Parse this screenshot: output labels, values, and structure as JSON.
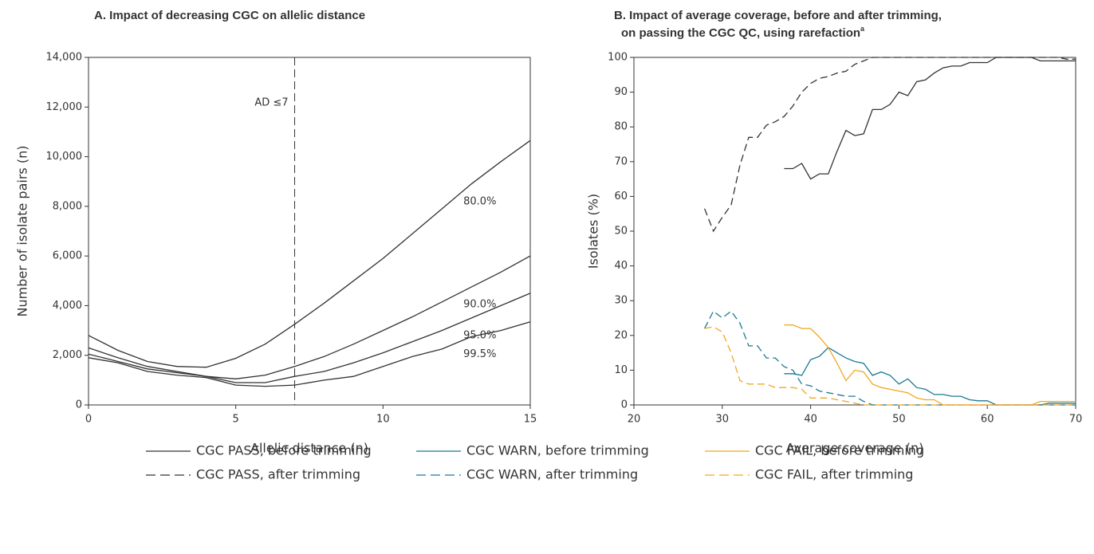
{
  "chart_data": [
    {
      "type": "line",
      "title": [
        "A. Impact of decreasing CGC on allelic distance"
      ],
      "x_label": "Allelic distance (n)",
      "y_label": "Number of isolate pairs (n)",
      "xlim": [
        0,
        15
      ],
      "xticks": [
        0,
        5,
        10,
        15
      ],
      "ylim": [
        0,
        14000
      ],
      "yticks": [
        0,
        {
          "value": 2000,
          "label": "2,000"
        },
        {
          "value": 4000,
          "label": "4,000"
        },
        {
          "value": 6000,
          "label": "6,000"
        },
        {
          "value": 8000,
          "label": "8,000"
        },
        {
          "value": 10000,
          "label": "10,000"
        },
        {
          "value": 12000,
          "label": "12,000"
        },
        {
          "value": 14000,
          "label": "14,000"
        }
      ],
      "inline_labels": true,
      "reference_line": {
        "x": 7,
        "label": "AD ≤7",
        "dash": true
      },
      "series": [
        {
          "name": "80.0%",
          "color": "#333333",
          "x": [
            0,
            1,
            2,
            3,
            4,
            5,
            6,
            7,
            8,
            9,
            10,
            11,
            12,
            13,
            14,
            15
          ],
          "values": [
            2800,
            2200,
            1750,
            1550,
            1520,
            1880,
            2450,
            3250,
            4100,
            5000,
            5900,
            6900,
            7900,
            8900,
            9800,
            10650
          ]
        },
        {
          "name": "90.0%",
          "color": "#333333",
          "x": [
            0,
            1,
            2,
            3,
            4,
            5,
            6,
            7,
            8,
            9,
            10,
            11,
            12,
            13,
            14,
            15
          ],
          "values": [
            2300,
            1900,
            1550,
            1350,
            1150,
            1050,
            1200,
            1550,
            1950,
            2450,
            3000,
            3550,
            4150,
            4750,
            5350,
            6000
          ]
        },
        {
          "name": "95.0%",
          "color": "#333333",
          "x": [
            0,
            1,
            2,
            3,
            4,
            5,
            6,
            7,
            8,
            9,
            10,
            11,
            12,
            13,
            14,
            15
          ],
          "values": [
            2050,
            1750,
            1450,
            1300,
            1150,
            900,
            900,
            1150,
            1350,
            1700,
            2100,
            2550,
            3000,
            3500,
            4000,
            4500
          ]
        },
        {
          "name": "99.5%",
          "color": "#333333",
          "x": [
            0,
            1,
            2,
            3,
            4,
            5,
            6,
            7,
            8,
            9,
            10,
            11,
            12,
            13,
            14,
            15
          ],
          "values": [
            1900,
            1700,
            1350,
            1200,
            1100,
            800,
            750,
            800,
            1000,
            1150,
            1550,
            1950,
            2250,
            2750,
            3000,
            3350
          ]
        }
      ]
    },
    {
      "type": "line",
      "title": [
        "B. Impact of average coverage, before and after trimming,",
        "on passing the CGC QC, using rarefaction"
      ],
      "title_note": "a",
      "x_label": "Average coverage (n)",
      "y_label": "Isolates (%)",
      "xlim": [
        20,
        70
      ],
      "xticks": [
        20,
        30,
        40,
        50,
        60,
        70
      ],
      "ylim": [
        0,
        100
      ],
      "yticks": [
        0,
        10,
        20,
        30,
        40,
        50,
        60,
        70,
        80,
        90,
        100
      ],
      "legend": "bottom",
      "series": [
        {
          "name": "CGC PASS, before trimming",
          "color": "#333333",
          "dash": false,
          "x": [
            37,
            38,
            39,
            40,
            41,
            42,
            43,
            44,
            45,
            46,
            47,
            48,
            49,
            50,
            51,
            52,
            53,
            54,
            55,
            56,
            57,
            58,
            59,
            60,
            61,
            62,
            63,
            64,
            65,
            66,
            67,
            68,
            69,
            70
          ],
          "values": [
            68,
            68,
            69.5,
            65,
            66.5,
            66.5,
            73,
            79,
            77.5,
            78,
            85,
            85,
            86.5,
            90,
            89,
            93,
            93.5,
            95.5,
            97,
            97.5,
            97.5,
            98.5,
            98.5,
            98.5,
            100,
            100,
            100,
            100,
            100,
            99,
            99,
            99,
            99,
            99
          ]
        },
        {
          "name": "CGC PASS, after trimming",
          "color": "#333333",
          "dash": true,
          "x": [
            28,
            29,
            30,
            31,
            32,
            33,
            34,
            35,
            36,
            37,
            38,
            39,
            40,
            41,
            42,
            43,
            44,
            45,
            46,
            47,
            48,
            49,
            50,
            51,
            52,
            53,
            54,
            55,
            56,
            57,
            58,
            59,
            60,
            61,
            62,
            63,
            64,
            65,
            66,
            67,
            68,
            69,
            70
          ],
          "values": [
            56.5,
            50,
            54,
            57.5,
            69,
            77,
            77,
            80.5,
            81.5,
            83,
            86,
            90,
            92.5,
            94,
            94.5,
            95.5,
            96,
            98,
            99,
            100,
            100,
            100,
            100,
            100,
            100,
            100,
            100,
            100,
            100,
            100,
            100,
            100,
            100,
            100,
            100,
            100,
            100,
            100,
            100,
            100,
            100,
            99.5,
            99.5
          ]
        },
        {
          "name": "CGC WARN, before trimming",
          "color": "#1b7896",
          "dash": false,
          "x": [
            37,
            38,
            39,
            40,
            41,
            42,
            43,
            44,
            45,
            46,
            47,
            48,
            49,
            50,
            51,
            52,
            53,
            54,
            55,
            56,
            57,
            58,
            59,
            60,
            61,
            62,
            63,
            64,
            65,
            66,
            67,
            68,
            69,
            70
          ],
          "values": [
            9,
            9,
            8.5,
            13,
            14,
            16.5,
            15,
            13.5,
            12.5,
            12,
            8.5,
            9.5,
            8.5,
            6,
            7.5,
            5,
            4.5,
            3,
            3,
            2.5,
            2.5,
            1.5,
            1.2,
            1.2,
            0,
            0,
            0,
            0,
            0,
            0,
            0.5,
            0.5,
            0.5,
            0.5
          ]
        },
        {
          "name": "CGC WARN, after trimming",
          "color": "#1b7896",
          "dash": true,
          "x": [
            28,
            29,
            30,
            31,
            32,
            33,
            34,
            35,
            36,
            37,
            38,
            39,
            40,
            41,
            42,
            43,
            44,
            45,
            46,
            47,
            48,
            49,
            50,
            51,
            52,
            53,
            54,
            55,
            56,
            57,
            58,
            59,
            60,
            61,
            62,
            63,
            64,
            65,
            66,
            67,
            68,
            69,
            70
          ],
          "values": [
            22,
            27,
            25,
            27,
            23.5,
            17,
            17,
            13.5,
            13.5,
            11,
            10,
            6,
            5.5,
            4,
            3.5,
            3,
            2.5,
            2.5,
            1,
            0,
            0,
            0,
            0,
            0,
            0,
            0,
            0,
            0,
            0,
            0,
            0,
            0,
            0,
            0,
            0,
            0,
            0,
            0,
            0,
            0,
            0,
            0,
            0
          ]
        },
        {
          "name": "CGC FAIL, before trimming",
          "color": "#f2a623",
          "dash": false,
          "x": [
            37,
            38,
            39,
            40,
            41,
            42,
            43,
            44,
            45,
            46,
            47,
            48,
            49,
            50,
            51,
            52,
            53,
            54,
            55,
            56,
            57,
            58,
            59,
            60,
            61,
            62,
            63,
            64,
            65,
            66,
            67,
            68,
            69,
            70
          ],
          "values": [
            23,
            23,
            22,
            22,
            19.5,
            16.5,
            12,
            7,
            10,
            9.5,
            6,
            5,
            4.5,
            4,
            3.5,
            2,
            1.5,
            1.5,
            0,
            0,
            0,
            0,
            0,
            0,
            0,
            0,
            0,
            0,
            0,
            1,
            1,
            1,
            1,
            1
          ]
        },
        {
          "name": "CGC FAIL, after trimming",
          "color": "#f2a623",
          "dash": true,
          "x": [
            28,
            29,
            30,
            31,
            32,
            33,
            34,
            35,
            36,
            37,
            38,
            39,
            40,
            41,
            42,
            43,
            44,
            45,
            46,
            47,
            48,
            49,
            50,
            51,
            52,
            53,
            54,
            55,
            56,
            57,
            58,
            59,
            60,
            61,
            62,
            63,
            64,
            65,
            66,
            67,
            68,
            69,
            70
          ],
          "values": [
            22,
            22.5,
            21,
            15,
            7,
            6,
            6,
            6,
            5,
            5,
            5,
            4.5,
            2,
            2,
            2,
            1.5,
            1,
            0.5,
            0,
            0,
            0,
            0,
            0,
            0,
            0,
            0,
            0,
            0,
            0,
            0,
            0,
            0,
            0,
            0,
            0,
            0,
            0,
            0,
            0,
            0,
            0,
            0,
            0
          ]
        }
      ]
    }
  ]
}
